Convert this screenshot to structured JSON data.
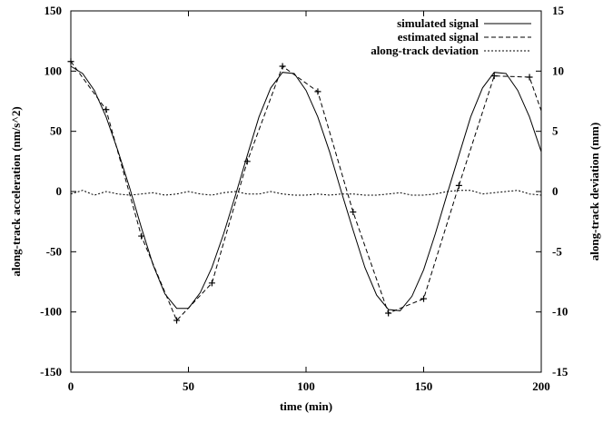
{
  "chart_data": {
    "type": "line",
    "xlabel": "time (min)",
    "ylabel": "along-track acceleration (nm/s^2)",
    "y2label": "along-track deviation (mm)",
    "xlim": [
      0,
      200
    ],
    "ylim": [
      -150,
      150
    ],
    "y2lim": [
      -15,
      15
    ],
    "x_ticks": [
      "0",
      "50",
      "100",
      "150",
      "200"
    ],
    "y_ticks": [
      "-150",
      "-100",
      "-50",
      "0",
      "50",
      "100",
      "150"
    ],
    "y2_ticks": [
      "-15",
      "-10",
      "-5",
      "0",
      "5",
      "10",
      "15"
    ],
    "grid": false,
    "legend_position": "top-right",
    "series": [
      {
        "name": "simulated signal",
        "style": "solid",
        "axis": "left",
        "x": [
          0,
          5,
          10,
          15,
          20,
          25,
          30,
          35,
          40,
          45,
          50,
          55,
          60,
          65,
          70,
          75,
          80,
          85,
          90,
          95,
          100,
          105,
          110,
          115,
          120,
          125,
          130,
          135,
          140,
          145,
          150,
          155,
          160,
          165,
          170,
          175,
          180,
          185,
          190,
          195,
          200
        ],
        "y": [
          104,
          98,
          84,
          62,
          34,
          3,
          -30,
          -61,
          -85,
          -97,
          -97,
          -84,
          -63,
          -35,
          -3,
          30,
          62,
          86,
          99,
          98,
          84,
          62,
          33,
          0,
          -32,
          -63,
          -86,
          -98,
          -99,
          -87,
          -65,
          -35,
          -2,
          30,
          62,
          86,
          99,
          98,
          84,
          62,
          33
        ]
      },
      {
        "name": "estimated signal",
        "style": "dashed",
        "axis": "left",
        "x": [
          0,
          15,
          30,
          45,
          60,
          75,
          90,
          105,
          120,
          135,
          150,
          165,
          180,
          195,
          200
        ],
        "y": [
          108,
          68,
          -37,
          -107,
          -76,
          25,
          104,
          83,
          -17,
          -101,
          -89,
          5,
          96,
          95,
          67
        ]
      },
      {
        "name": "along-track deviation",
        "style": "dotted",
        "axis": "right",
        "x": [
          0,
          5,
          10,
          15,
          20,
          25,
          30,
          35,
          40,
          45,
          50,
          55,
          60,
          65,
          70,
          75,
          80,
          85,
          90,
          95,
          100,
          105,
          110,
          115,
          120,
          125,
          130,
          135,
          140,
          145,
          150,
          155,
          160,
          165,
          170,
          175,
          180,
          185,
          190,
          195,
          200
        ],
        "y": [
          -0.2,
          0.1,
          -0.3,
          0.0,
          -0.2,
          -0.3,
          -0.2,
          -0.1,
          -0.3,
          -0.2,
          0.0,
          -0.2,
          -0.3,
          -0.1,
          0.0,
          -0.2,
          -0.2,
          0.0,
          -0.2,
          -0.3,
          -0.3,
          -0.2,
          -0.3,
          -0.2,
          -0.2,
          -0.3,
          -0.3,
          -0.2,
          -0.1,
          -0.3,
          -0.3,
          -0.2,
          0.0,
          0.1,
          0.1,
          -0.2,
          -0.1,
          0.0,
          0.1,
          -0.2,
          -0.3
        ]
      }
    ],
    "markers": {
      "of_series": "estimated signal",
      "symbol": "+",
      "x": [
        0,
        15,
        30,
        45,
        60,
        75,
        90,
        105,
        120,
        135,
        150,
        165,
        180,
        195
      ],
      "y": [
        108,
        68,
        -37,
        -107,
        -76,
        25,
        104,
        83,
        -17,
        -101,
        -89,
        5,
        96,
        95
      ]
    }
  },
  "colors": {
    "background": "#ffffff",
    "ink": "#000000"
  }
}
